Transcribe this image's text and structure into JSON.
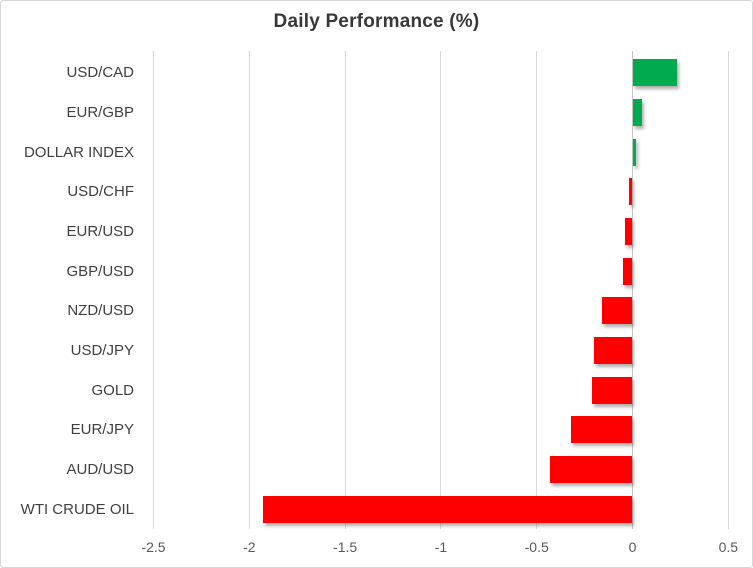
{
  "chart_data": {
    "type": "bar",
    "orientation": "horizontal",
    "title": "Daily Performance (%)",
    "categories": [
      "USD/CAD",
      "EUR/GBP",
      "DOLLAR INDEX",
      "USD/CHF",
      "EUR/USD",
      "GBP/USD",
      "NZD/USD",
      "USD/JPY",
      "GOLD",
      "EUR/JPY",
      "AUD/USD",
      "WTI CRUDE OIL"
    ],
    "values": [
      0.23,
      0.05,
      0.02,
      -0.02,
      -0.04,
      -0.05,
      -0.16,
      -0.2,
      -0.21,
      -0.32,
      -0.43,
      -1.93
    ],
    "xlabel": "",
    "ylabel": "",
    "xlim": [
      -2.5,
      0.5
    ],
    "x_ticks": [
      -2.5,
      -2,
      -1.5,
      -1,
      -0.5,
      0,
      0.5
    ],
    "x_tick_labels": [
      "-2.5",
      "-2",
      "-1.5",
      "-1",
      "-0.5",
      "0",
      "0.5"
    ],
    "grid": "vertical-gridlines-on",
    "legend": "none",
    "colors": {
      "positive_bar": "#00AB50",
      "negative_bar": "#FF0000",
      "gridline": "#D9D9D9",
      "zero_axis": "#C6C6C6",
      "title_text": "#383838",
      "category_text": "#404040",
      "tick_text": "#595959",
      "border": "#D7D7D7",
      "background": "#FFFFFF"
    }
  }
}
